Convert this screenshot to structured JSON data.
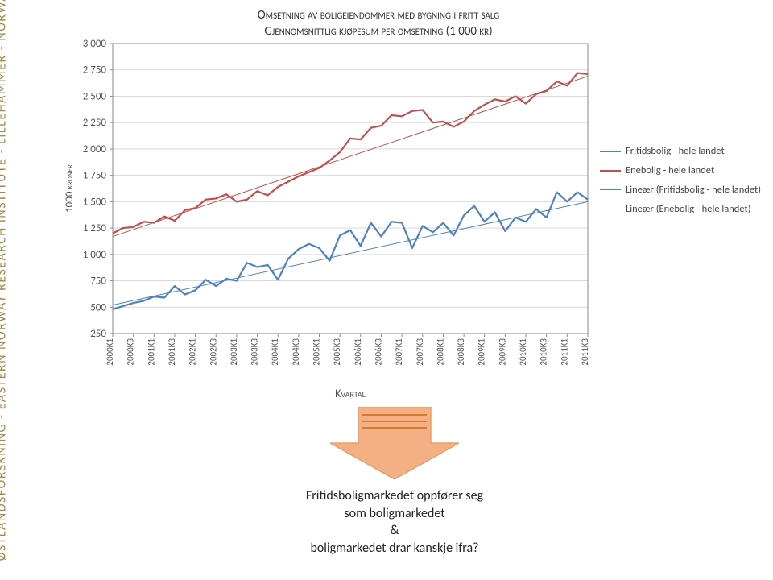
{
  "side_text": "ØSTLANDSFORSKNING   -   EASTERN NORWAY RESEARCH INSTITUTE   -   LILLEHAMMER   -   NORWAY",
  "side_text_color": "#a6874a",
  "chart": {
    "type": "line",
    "title_line1": "Omsetning av boligeiendommer med bygning i fritt salg",
    "title_line2": "Gjennomsnittlig kjøpesum per omsetning (1 000 kr)",
    "y_label": "1000 kroner",
    "x_label": "Kvartal",
    "ylim": [
      250,
      3000
    ],
    "ytick_step": 250,
    "yticks": [
      "250",
      "500",
      "750",
      "1 000",
      "1 250",
      "1 500",
      "1 750",
      "2 000",
      "2 250",
      "2 500",
      "2 750",
      "3 000"
    ],
    "xlabels": [
      "2000K1",
      "2000K3",
      "2001K1",
      "2001K3",
      "2002K1",
      "2002K3",
      "2003K1",
      "2003K3",
      "2004K1",
      "2004K3",
      "2005K1",
      "2005K3",
      "2006K1",
      "2006K3",
      "2007K1",
      "2007K3",
      "2008K1",
      "2008K3",
      "2009K1",
      "2009K3",
      "2010K1",
      "2010K3",
      "2011K1",
      "2011K3"
    ],
    "background_color": "#ffffff",
    "grid_color": "#d9d9d9",
    "series": {
      "fritidsbolig": {
        "label": "Fritidsbolig - hele landet",
        "color": "#4f81bd",
        "width": 2.2,
        "values": [
          480,
          510,
          540,
          560,
          600,
          590,
          700,
          620,
          660,
          760,
          700,
          770,
          750,
          920,
          880,
          900,
          760,
          960,
          1050,
          1100,
          1060,
          940,
          1180,
          1230,
          1080,
          1300,
          1170,
          1310,
          1300,
          1060,
          1270,
          1210,
          1300,
          1180,
          1370,
          1460,
          1310,
          1400,
          1220,
          1350,
          1310,
          1430,
          1350,
          1590,
          1500,
          1590,
          1520
        ]
      },
      "enebolig": {
        "label": "Enebolig - hele landet",
        "color": "#c0504d",
        "width": 2.2,
        "values": [
          1200,
          1250,
          1260,
          1310,
          1300,
          1360,
          1320,
          1420,
          1440,
          1520,
          1530,
          1570,
          1500,
          1520,
          1600,
          1560,
          1640,
          1690,
          1740,
          1780,
          1820,
          1890,
          1970,
          2100,
          2090,
          2200,
          2220,
          2320,
          2310,
          2360,
          2370,
          2250,
          2260,
          2210,
          2260,
          2360,
          2420,
          2470,
          2450,
          2500,
          2430,
          2520,
          2550,
          2640,
          2600,
          2720,
          2710
        ]
      },
      "fritidsbolig_trend": {
        "label": "Lineær (Fritidsbolig - hele landet)",
        "color": "#4f81bd",
        "width": 1,
        "start": 520,
        "end": 1500
      },
      "enebolig_trend": {
        "label": "Lineær (Enebolig - hele landet)",
        "color": "#c0504d",
        "width": 1,
        "start": 1170,
        "end": 2690
      }
    }
  },
  "arrow": {
    "fill_color": "#f4b084",
    "border_color": "#e8a268",
    "inner_lines_color": "#d97a30"
  },
  "commentary": {
    "line1": "Fritidsboligmarkedet oppfører seg",
    "line2": "som boligmarkedet",
    "line3": "&",
    "line4": "boligmarkedet drar kanskje ifra?"
  },
  "legend_items": [
    {
      "label": "Fritidsbolig - hele landet",
      "color": "#4f81bd",
      "thin": false
    },
    {
      "label": "Enebolig - hele landet",
      "color": "#c0504d",
      "thin": false
    },
    {
      "label": "Lineær (Fritidsbolig - hele landet)",
      "color": "#4f81bd",
      "thin": true
    },
    {
      "label": "Lineær (Enebolig - hele landet)",
      "color": "#c0504d",
      "thin": true
    }
  ]
}
